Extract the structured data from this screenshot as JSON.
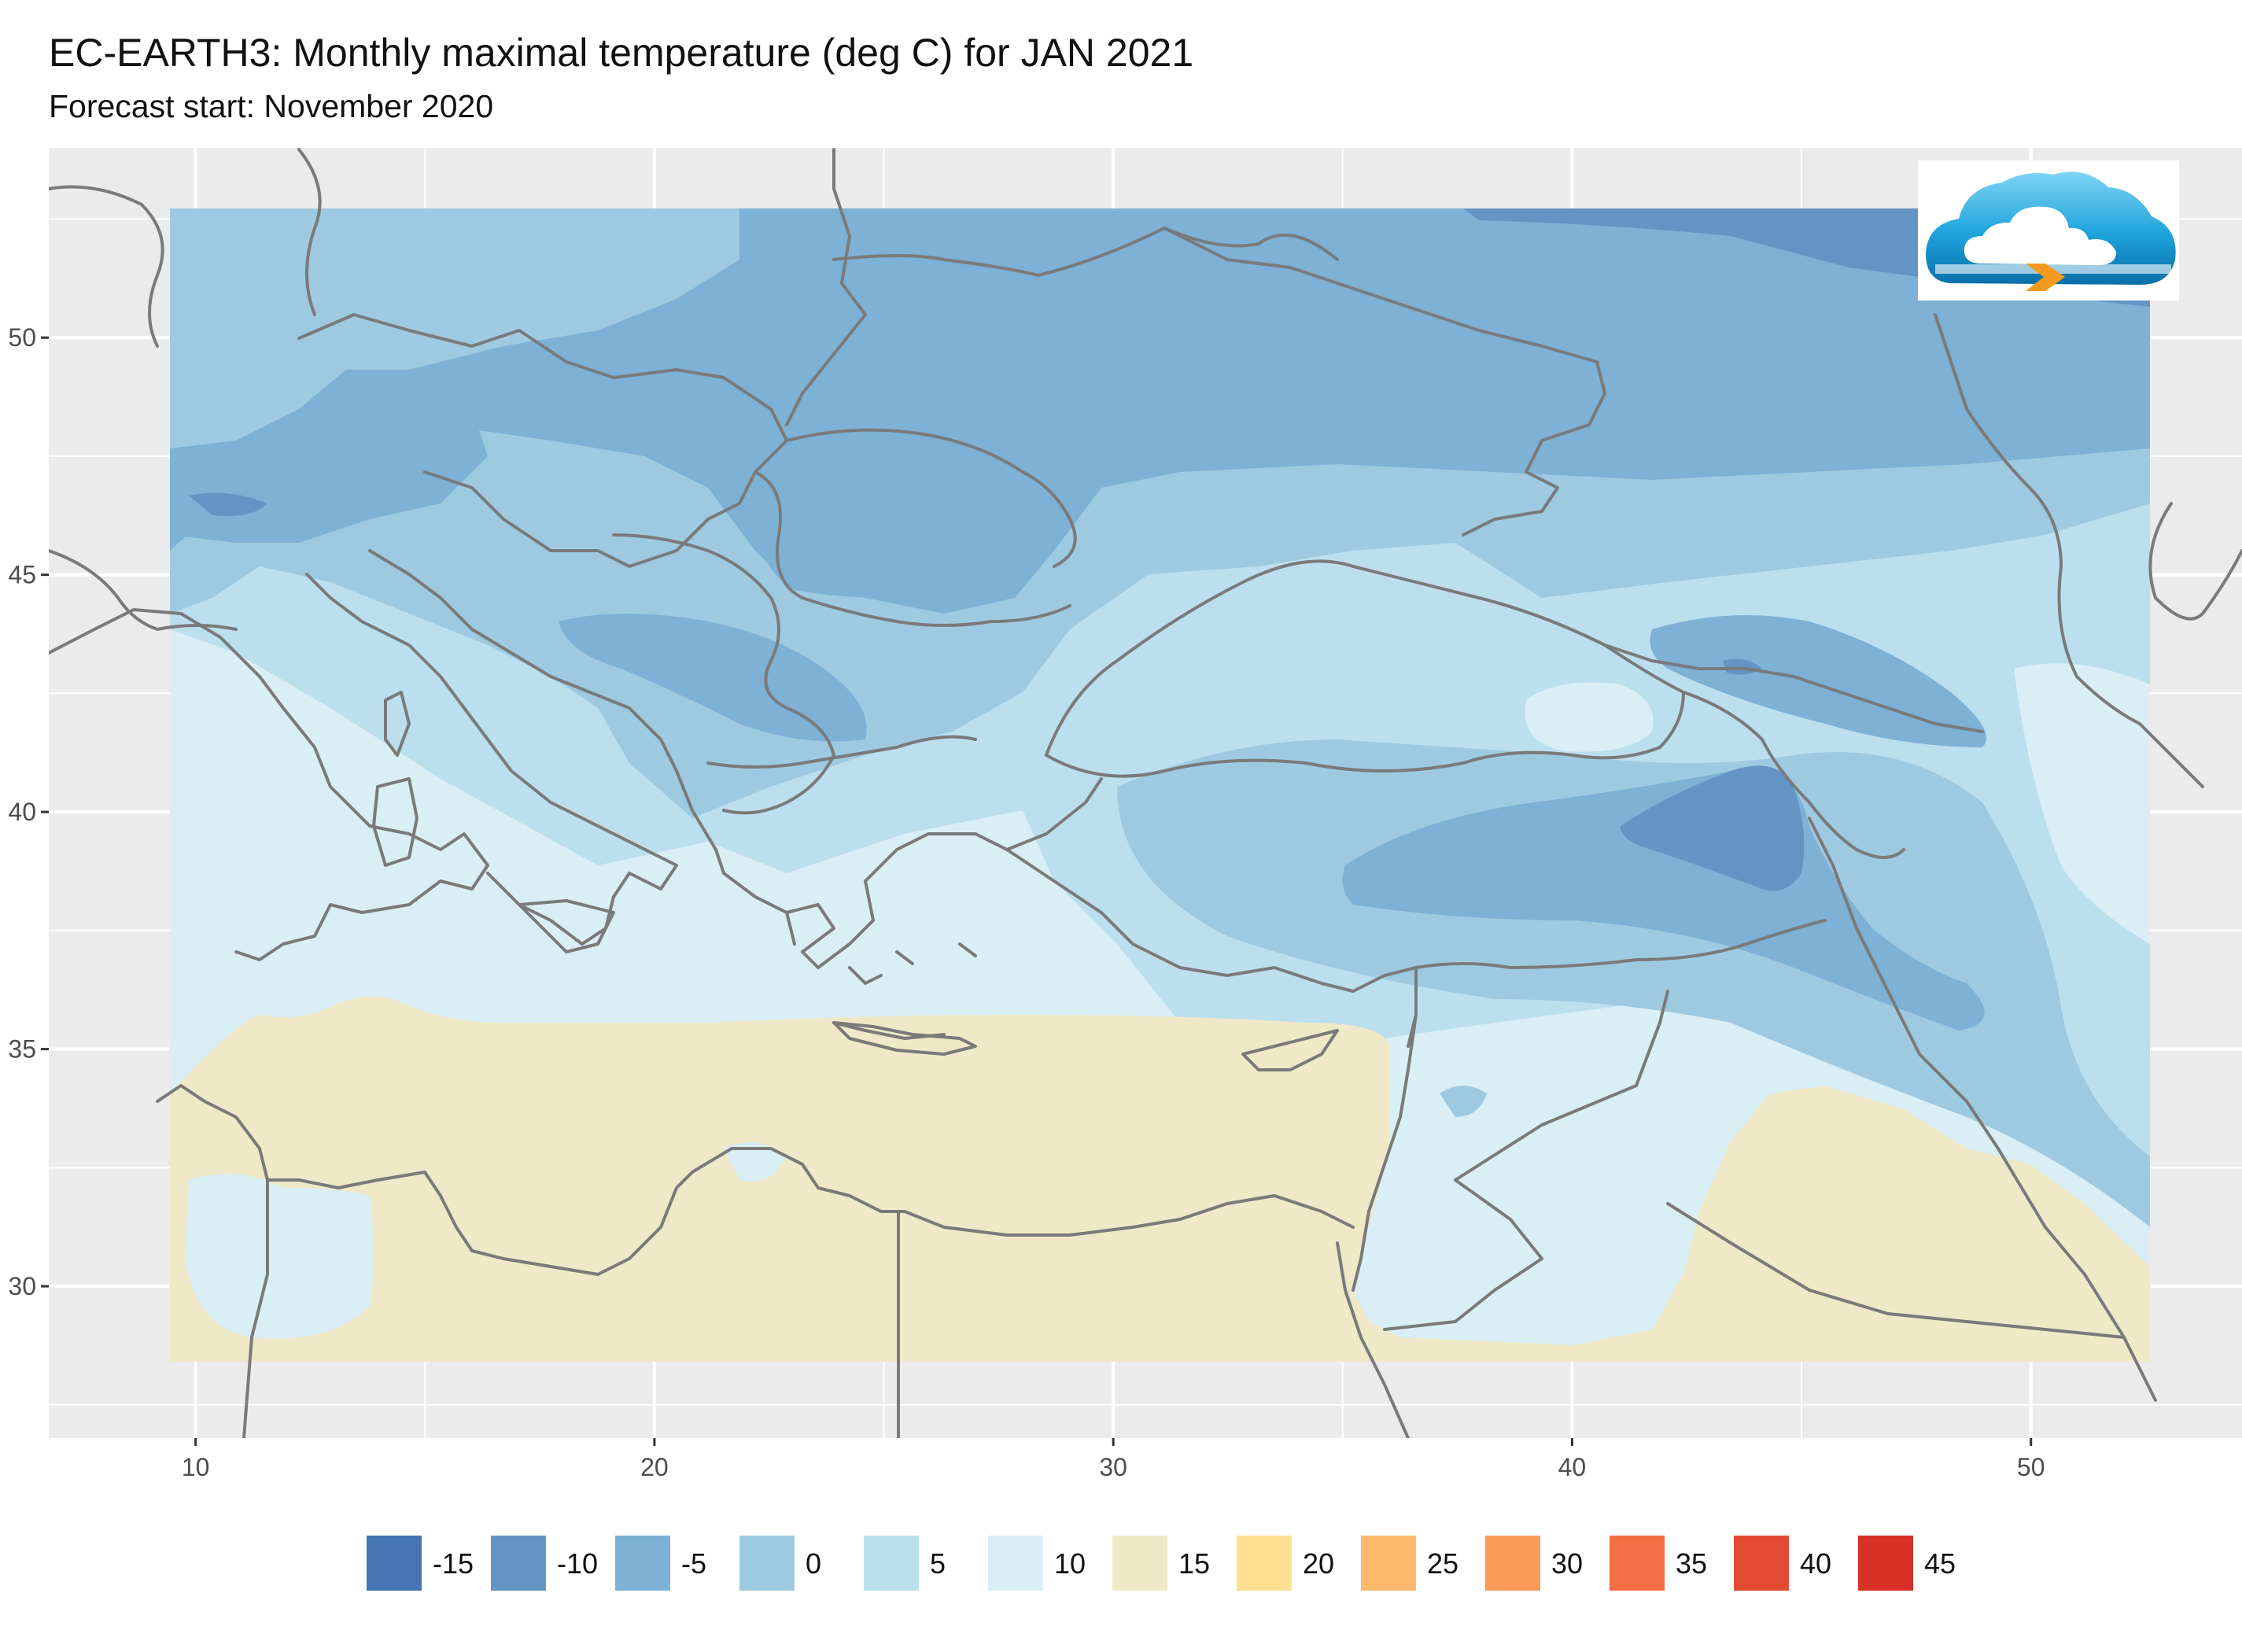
{
  "header": {
    "title": "EC-EARTH3: Monthly maximal temperature (deg C) for JAN 2021",
    "subtitle": "Forecast start: November 2020"
  },
  "map": {
    "lon_range": [
      6.8,
      54.6
    ],
    "lat_range": [
      26.8,
      54.0
    ],
    "data_lon_range": [
      9.5,
      51.7
    ],
    "data_lat_range": [
      28.5,
      53.0
    ],
    "x_ticks": [
      10,
      20,
      30,
      40,
      50
    ],
    "y_ticks": [
      30,
      35,
      40,
      45,
      50
    ],
    "panel_color": "#ebebeb",
    "grid_color": "#ffffff",
    "border_color": "#7a7a7a",
    "logo_icon": "cloud-logo-icon"
  },
  "legend": {
    "items": [
      {
        "label": "-15",
        "color": "#4575b4"
      },
      {
        "label": "-10",
        "color": "#6394c4"
      },
      {
        "label": "-5",
        "color": "#7db1d5"
      },
      {
        "label": "0",
        "color": "#9ecae1"
      },
      {
        "label": "5",
        "color": "#bcdfee"
      },
      {
        "label": "10",
        "color": "#daeef5"
      },
      {
        "label": "15",
        "color": "#efe9c7"
      },
      {
        "label": "20",
        "color": "#fee090"
      },
      {
        "label": "25",
        "color": "#fdb96b"
      },
      {
        "label": "30",
        "color": "#fa9b58"
      },
      {
        "label": "35",
        "color": "#f46d43"
      },
      {
        "label": "40",
        "color": "#e34a33"
      },
      {
        "label": "45",
        "color": "#d73027"
      }
    ]
  }
}
